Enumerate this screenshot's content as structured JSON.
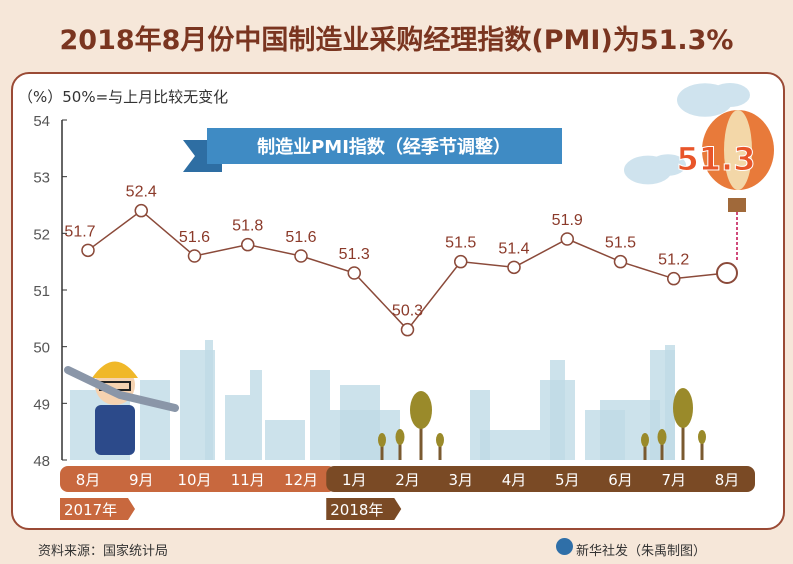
{
  "title": "2018年8月份中国制造业采购经理指数(PMI)为51.3%",
  "note": "（%）50%=与上月比较无变化",
  "banner": "制造业PMI指数（经季节调整）",
  "highlight": "51.3",
  "source": "资料来源：国家统计局",
  "credit": "新华社发（朱禹制图）",
  "colors": {
    "line": "#8b4a3a",
    "label": "#8b3a2a",
    "bar2017": "#c8683e",
    "bar2018": "#7a4a25",
    "banner": "#3f8bc4",
    "highlight": "#e8552a",
    "skyline": "#bfdbe6"
  },
  "chart_data": {
    "type": "line",
    "title": "制造业PMI指数（经季节调整）",
    "ylabel": "%",
    "ylim": [
      48,
      54
    ],
    "yticks": [
      "48",
      "49",
      "50",
      "51",
      "52",
      "53",
      "54"
    ],
    "categories": [
      "8月",
      "9月",
      "10月",
      "11月",
      "12月",
      "1月",
      "2月",
      "3月",
      "4月",
      "5月",
      "6月",
      "7月",
      "8月"
    ],
    "years": [
      {
        "label": "2017年",
        "months": 5
      },
      {
        "label": "2018年",
        "months": 8
      }
    ],
    "series": [
      {
        "name": "PMI",
        "values": [
          51.7,
          52.4,
          51.6,
          51.8,
          51.6,
          51.3,
          50.3,
          51.5,
          51.4,
          51.9,
          51.5,
          51.2,
          51.3
        ]
      }
    ],
    "labels": [
      "51.7",
      "52.4",
      "51.6",
      "51.8",
      "51.6",
      "51.3",
      "50.3",
      "51.5",
      "51.4",
      "51.9",
      "51.5",
      "51.2",
      "51.3"
    ]
  }
}
